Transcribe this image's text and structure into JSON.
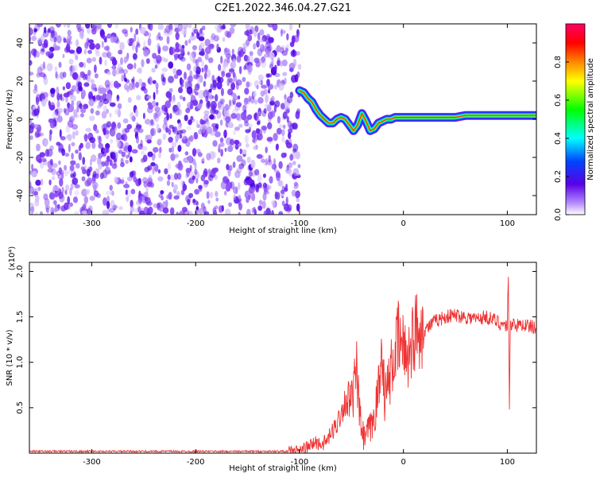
{
  "title": "C2E1.2022.346.04.27.G21",
  "chart_data": [
    {
      "type": "heatmap",
      "xlabel": "Height of straight line (km)",
      "ylabel": "Frequency (Hz)",
      "xlim": [
        -360,
        128
      ],
      "ylim": [
        -50,
        50
      ],
      "xticks": [
        -300,
        -200,
        -100,
        0,
        100
      ],
      "yticks": [
        -40,
        -20,
        0,
        20,
        40
      ],
      "noise_region_x": [
        -360,
        -100
      ],
      "ridge": {
        "x": [
          -100,
          -96,
          -92,
          -88,
          -84,
          -80,
          -76,
          -72,
          -68,
          -64,
          -60,
          -56,
          -52,
          -48,
          -44,
          -40,
          -36,
          -32,
          -28,
          -24,
          -20,
          -16,
          -12,
          -8,
          -4,
          0,
          10,
          20,
          30,
          40,
          50,
          60,
          70,
          80,
          90,
          100,
          110,
          120,
          128
        ],
        "y": [
          15,
          14,
          11,
          9,
          5,
          2,
          0,
          -2,
          -2,
          0,
          1,
          0,
          -3,
          -6,
          -3,
          3,
          -1,
          -6,
          -5,
          -2,
          -1,
          0,
          0,
          1,
          1,
          1,
          1,
          1,
          1,
          1,
          1,
          2,
          2,
          2,
          2,
          2,
          2,
          2,
          2
        ]
      },
      "colorbar": {
        "label": "Normalized spectral amplitude",
        "range": [
          0,
          1
        ],
        "ticks": [
          "0.0",
          "0.2",
          "0.4",
          "0.6",
          "0.8"
        ]
      }
    },
    {
      "type": "line",
      "xlabel": "Height of straight line (km)",
      "ylabel": "SNR (10 * v/v)",
      "multiplier": "(x10⁴)",
      "xlim": [
        -360,
        128
      ],
      "ylim": [
        0,
        2.1
      ],
      "xticks": [
        -300,
        -200,
        -100,
        0,
        100
      ],
      "yticks": [
        "0.5",
        "1.0",
        "1.5",
        "2.0"
      ],
      "color": "#ee3333",
      "series": [
        {
          "x": [
            -360,
            -300,
            -200,
            -110,
            -100,
            -95,
            -90,
            -85,
            -80,
            -75,
            -70,
            -65,
            -60,
            -55,
            -50,
            -45,
            -42,
            -40,
            -38,
            -35,
            -30,
            -25,
            -22,
            -20,
            -18,
            -15,
            -10,
            -5,
            0,
            5,
            10,
            15,
            20,
            30,
            40,
            50,
            60,
            70,
            80,
            90,
            95,
            100,
            101,
            102,
            103,
            105,
            110,
            115,
            120,
            128
          ],
          "y": [
            0.02,
            0.02,
            0.02,
            0.02,
            0.03,
            0.05,
            0.08,
            0.12,
            0.1,
            0.12,
            0.2,
            0.3,
            0.45,
            0.6,
            0.55,
            0.9,
            0.4,
            0.25,
            0.15,
            0.22,
            0.3,
            0.6,
            0.9,
            1.2,
            0.6,
            0.75,
            1.0,
            1.25,
            1.15,
            1.1,
            1.3,
            1.4,
            1.35,
            1.45,
            1.5,
            1.52,
            1.5,
            1.48,
            1.5,
            1.45,
            1.42,
            1.4,
            2.0,
            0.5,
            1.4,
            1.45,
            1.4,
            1.42,
            1.4,
            1.38
          ]
        }
      ]
    }
  ]
}
